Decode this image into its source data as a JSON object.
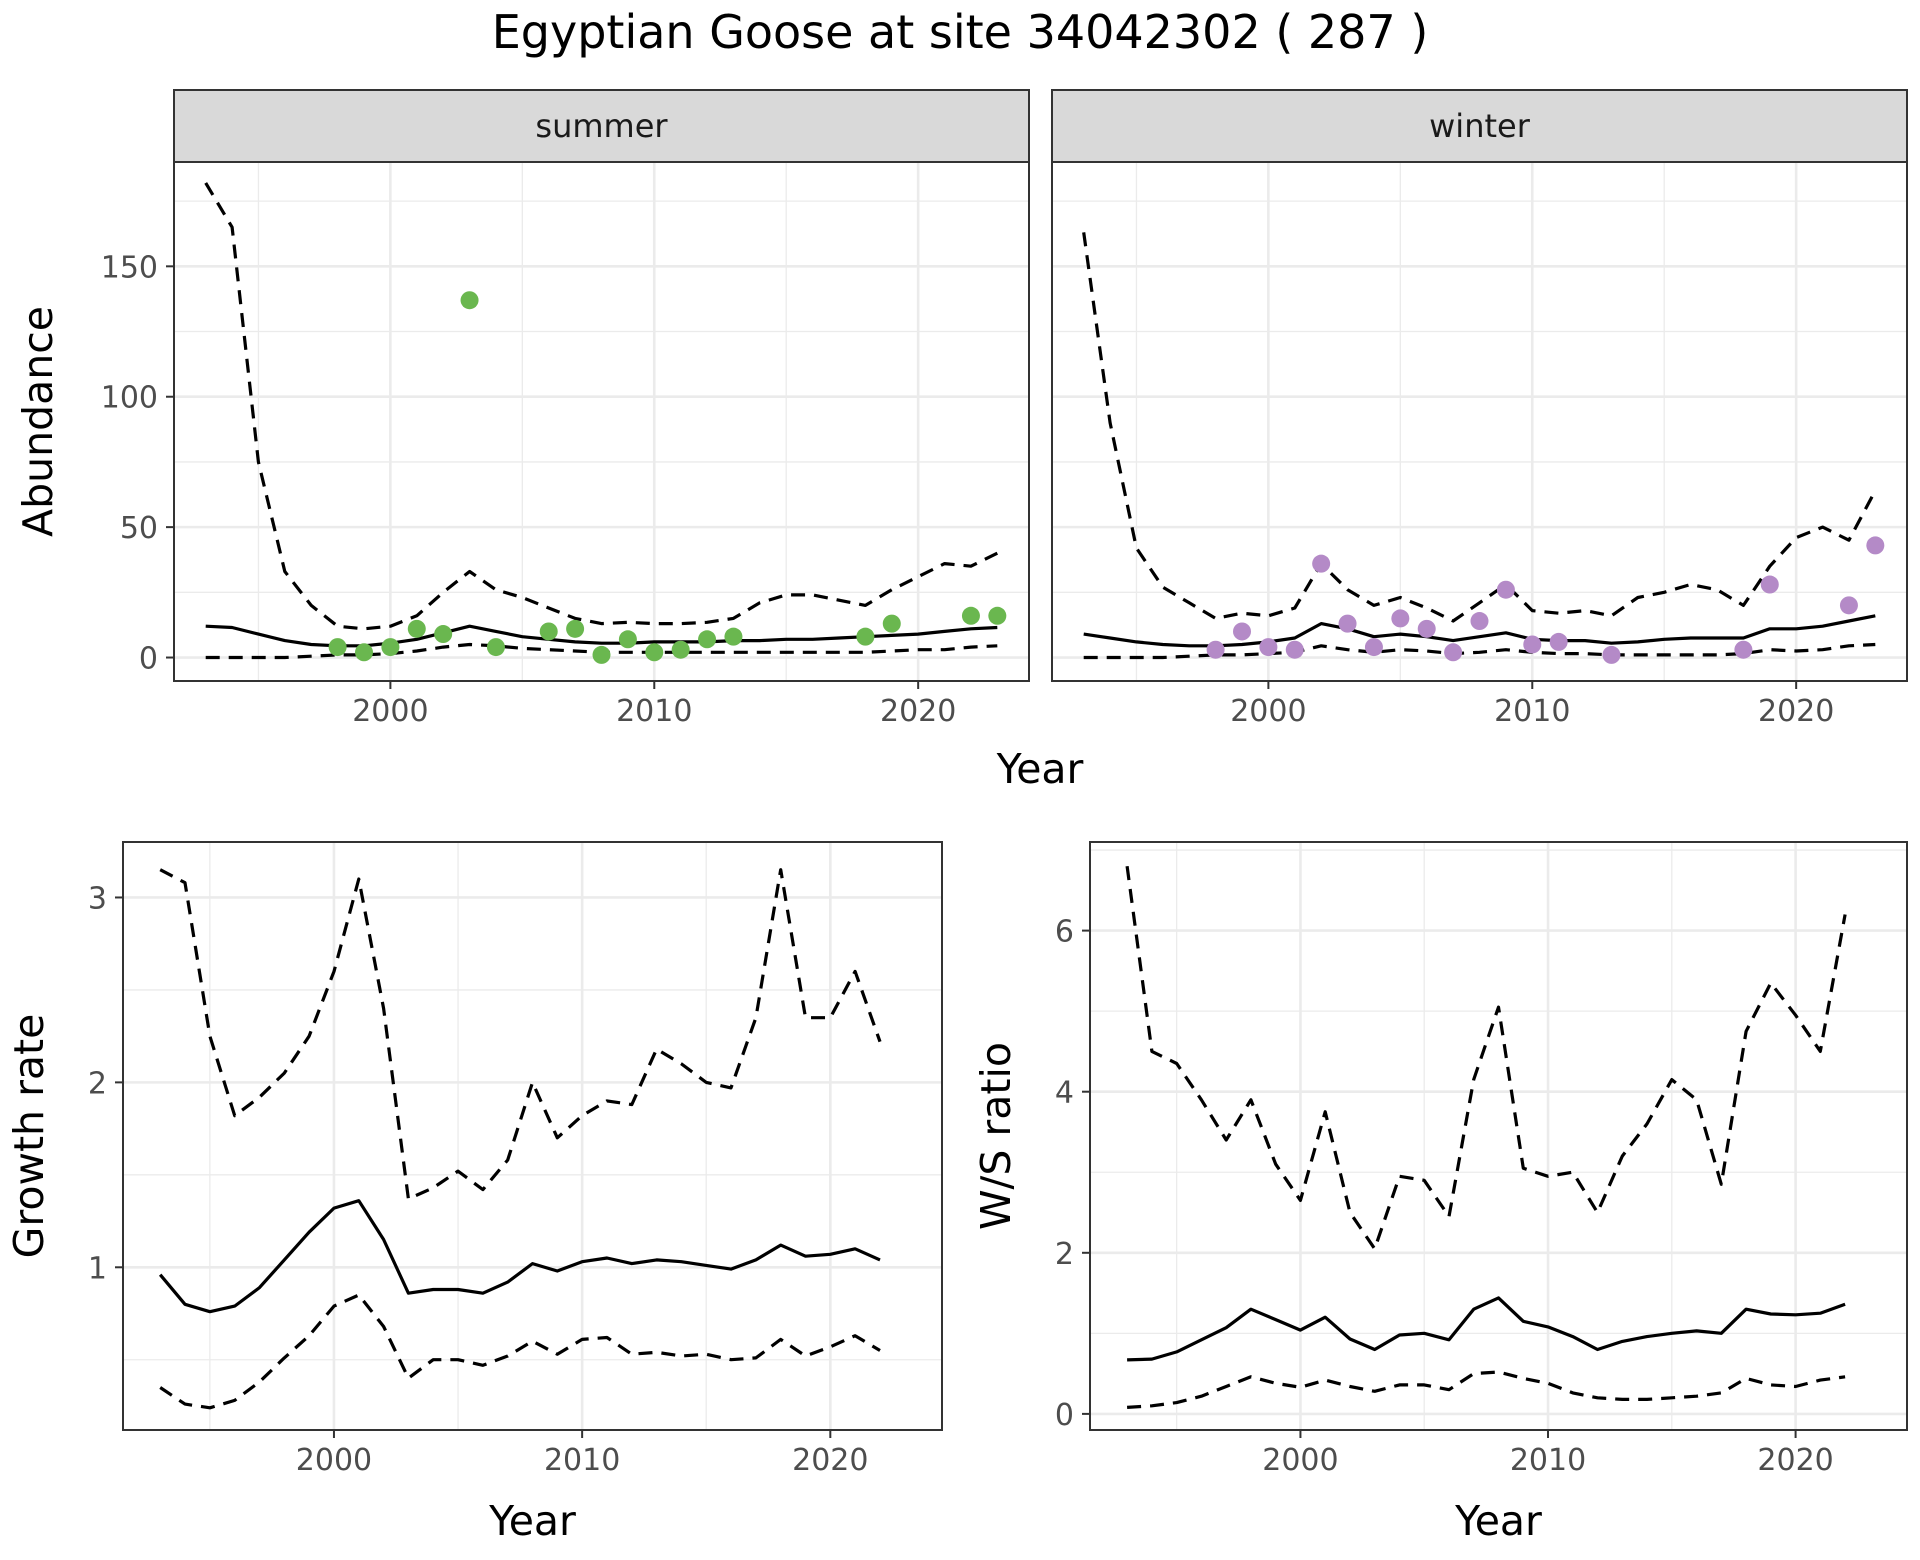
{
  "figure": {
    "title": "Egyptian Goose at site 34042302 ( 287 )"
  },
  "colors": {
    "summer_points": "#6ab74f",
    "winter_points": "#b48ac7",
    "line": "#000000",
    "grid": "#ebebeb"
  },
  "chart_data": [
    {
      "id": "abundance-summer",
      "type": "line",
      "facet": "summer",
      "xlabel": "Year",
      "ylabel": "Abundance",
      "xlim": [
        1991.8,
        2024.2
      ],
      "ylim": [
        -9,
        190
      ],
      "x_ticks": [
        2000,
        2010,
        2020
      ],
      "y_ticks": [
        0,
        50,
        100,
        150
      ],
      "grid": true,
      "series": [
        {
          "style": "solid",
          "x": [
            1993,
            1994,
            1995,
            1996,
            1997,
            1998,
            1999,
            2000,
            2001,
            2002,
            2003,
            2004,
            2005,
            2006,
            2007,
            2008,
            2009,
            2010,
            2011,
            2012,
            2013,
            2014,
            2015,
            2016,
            2017,
            2018,
            2019,
            2020,
            2021,
            2022,
            2023
          ],
          "y": [
            12,
            11.5,
            9,
            6.5,
            5,
            4.5,
            4.5,
            5.5,
            7,
            9.5,
            12,
            10,
            8,
            7,
            6,
            5.5,
            5.5,
            6,
            6,
            6,
            6.5,
            6.5,
            7,
            7,
            7.5,
            8,
            8.5,
            9,
            10,
            11,
            11.5
          ]
        },
        {
          "style": "dashed",
          "x": [
            1993,
            1994,
            1995,
            1996,
            1997,
            1998,
            1999,
            2000,
            2001,
            2002,
            2003,
            2004,
            2005,
            2006,
            2007,
            2008,
            2009,
            2010,
            2011,
            2012,
            2013,
            2014,
            2015,
            2016,
            2017,
            2018,
            2019,
            2020,
            2021,
            2022,
            2023
          ],
          "y": [
            182,
            165,
            75,
            33,
            20,
            12,
            11,
            12,
            16,
            25,
            33,
            26,
            23,
            19,
            15,
            13,
            13.5,
            13,
            13,
            13.5,
            15,
            21,
            24,
            24,
            22,
            20,
            26,
            31,
            36,
            35,
            40
          ]
        },
        {
          "style": "dashed",
          "x": [
            1993,
            1994,
            1995,
            1996,
            1997,
            1998,
            1999,
            2000,
            2001,
            2002,
            2003,
            2004,
            2005,
            2006,
            2007,
            2008,
            2009,
            2010,
            2011,
            2012,
            2013,
            2014,
            2015,
            2016,
            2017,
            2018,
            2019,
            2020,
            2021,
            2022,
            2023
          ],
          "y": [
            0,
            0,
            0,
            0,
            0.5,
            1,
            1,
            1.5,
            2.5,
            4,
            5,
            4.5,
            3.5,
            3,
            2.5,
            2,
            2,
            2,
            2,
            2,
            2,
            2,
            2,
            2,
            2,
            2,
            2.5,
            3,
            3,
            4,
            4.5
          ]
        },
        {
          "style": "points",
          "x": [
            1998,
            1999,
            2000,
            2001,
            2002,
            2003,
            2004,
            2006,
            2007,
            2008,
            2009,
            2010,
            2011,
            2012,
            2013,
            2018,
            2019,
            2022,
            2023
          ],
          "y": [
            4,
            2,
            4,
            11,
            9,
            137,
            4,
            10,
            11,
            1,
            7,
            2,
            3,
            7,
            8,
            8,
            13,
            16,
            16
          ]
        }
      ]
    },
    {
      "id": "abundance-winter",
      "type": "line",
      "facet": "winter",
      "xlabel": "Year",
      "ylabel": "Abundance",
      "xlim": [
        1991.8,
        2024.2
      ],
      "ylim": [
        -9,
        190
      ],
      "x_ticks": [
        2000,
        2010,
        2020
      ],
      "y_ticks": [
        0,
        50,
        100,
        150
      ],
      "grid": true,
      "series": [
        {
          "style": "solid",
          "x": [
            1993,
            1994,
            1995,
            1996,
            1997,
            1998,
            1999,
            2000,
            2001,
            2002,
            2003,
            2004,
            2005,
            2006,
            2007,
            2008,
            2009,
            2010,
            2011,
            2012,
            2013,
            2014,
            2015,
            2016,
            2017,
            2018,
            2019,
            2020,
            2021,
            2022,
            2023
          ],
          "y": [
            9,
            7.5,
            6,
            5,
            4.5,
            4.5,
            5,
            6,
            7.5,
            13,
            11,
            8,
            9,
            8,
            6.5,
            8,
            9.5,
            7,
            6.5,
            6.5,
            5.5,
            6,
            7,
            7.5,
            7.5,
            7.5,
            11,
            11,
            12,
            14,
            16
          ]
        },
        {
          "style": "dashed",
          "x": [
            1993,
            1994,
            1995,
            1996,
            1997,
            1998,
            1999,
            2000,
            2001,
            2002,
            2003,
            2004,
            2005,
            2006,
            2007,
            2008,
            2009,
            2010,
            2011,
            2012,
            2013,
            2014,
            2015,
            2016,
            2017,
            2018,
            2019,
            2020,
            2021,
            2022,
            2023
          ],
          "y": [
            163,
            90,
            42,
            27,
            21,
            15,
            17,
            16,
            19,
            36,
            26,
            20,
            23,
            19,
            14,
            21,
            28,
            18,
            17,
            18,
            16,
            23,
            25,
            28,
            26,
            20,
            35,
            46,
            50,
            45,
            64
          ]
        },
        {
          "style": "dashed",
          "x": [
            1993,
            1994,
            1995,
            1996,
            1997,
            1998,
            1999,
            2000,
            2001,
            2002,
            2003,
            2004,
            2005,
            2006,
            2007,
            2008,
            2009,
            2010,
            2011,
            2012,
            2013,
            2014,
            2015,
            2016,
            2017,
            2018,
            2019,
            2020,
            2021,
            2022,
            2023
          ],
          "y": [
            0,
            0,
            0,
            0,
            0.5,
            1,
            1,
            1.5,
            2,
            4.5,
            3,
            2,
            3,
            2.5,
            1.5,
            2,
            3,
            2,
            1.5,
            1.5,
            1,
            1,
            1,
            1,
            1,
            1.5,
            3,
            2.5,
            3,
            4.5,
            5
          ]
        },
        {
          "style": "points",
          "x": [
            1998,
            1999,
            2000,
            2001,
            2002,
            2003,
            2004,
            2005,
            2006,
            2007,
            2008,
            2009,
            2010,
            2011,
            2013,
            2018,
            2019,
            2022,
            2023
          ],
          "y": [
            3,
            10,
            4,
            3,
            36,
            13,
            4,
            15,
            11,
            2,
            14,
            26,
            5,
            6,
            1,
            3,
            28,
            20,
            43
          ]
        }
      ]
    },
    {
      "id": "growth-rate",
      "type": "line",
      "xlabel": "Year",
      "ylabel": "Growth rate",
      "xlim": [
        1991.5,
        2024.5
      ],
      "ylim": [
        0.12,
        3.3
      ],
      "x_ticks": [
        2000,
        2010,
        2020
      ],
      "y_ticks": [
        1,
        2,
        3
      ],
      "grid": true,
      "series": [
        {
          "style": "solid",
          "x": [
            1993,
            1994,
            1995,
            1996,
            1997,
            1998,
            1999,
            2000,
            2001,
            2002,
            2003,
            2004,
            2005,
            2006,
            2007,
            2008,
            2009,
            2010,
            2011,
            2012,
            2013,
            2014,
            2015,
            2016,
            2017,
            2018,
            2019,
            2020,
            2021,
            2022
          ],
          "y": [
            0.96,
            0.8,
            0.76,
            0.79,
            0.89,
            1.04,
            1.19,
            1.32,
            1.36,
            1.15,
            0.86,
            0.88,
            0.88,
            0.86,
            0.92,
            1.02,
            0.98,
            1.03,
            1.05,
            1.02,
            1.04,
            1.03,
            1.01,
            0.99,
            1.04,
            1.12,
            1.06,
            1.07,
            1.1,
            1.04
          ]
        },
        {
          "style": "dashed",
          "x": [
            1993,
            1994,
            1995,
            1996,
            1997,
            1998,
            1999,
            2000,
            2001,
            2002,
            2003,
            2004,
            2005,
            2006,
            2007,
            2008,
            2009,
            2010,
            2011,
            2012,
            2013,
            2014,
            2015,
            2016,
            2017,
            2018,
            2019,
            2020,
            2021,
            2022
          ],
          "y": [
            3.15,
            3.08,
            2.25,
            1.82,
            1.92,
            2.05,
            2.25,
            2.6,
            3.1,
            2.4,
            1.37,
            1.43,
            1.52,
            1.42,
            1.58,
            2.0,
            1.7,
            1.82,
            1.9,
            1.88,
            2.18,
            2.1,
            2.0,
            1.97,
            2.35,
            3.15,
            2.35,
            2.35,
            2.6,
            2.22
          ]
        },
        {
          "style": "dashed",
          "x": [
            1993,
            1994,
            1995,
            1996,
            1997,
            1998,
            1999,
            2000,
            2001,
            2002,
            2003,
            2004,
            2005,
            2006,
            2007,
            2008,
            2009,
            2010,
            2011,
            2012,
            2013,
            2014,
            2015,
            2016,
            2017,
            2018,
            2019,
            2020,
            2021,
            2022
          ],
          "y": [
            0.35,
            0.26,
            0.24,
            0.28,
            0.38,
            0.51,
            0.63,
            0.79,
            0.85,
            0.68,
            0.4,
            0.5,
            0.5,
            0.47,
            0.52,
            0.6,
            0.53,
            0.61,
            0.62,
            0.53,
            0.54,
            0.52,
            0.53,
            0.5,
            0.51,
            0.61,
            0.52,
            0.57,
            0.63,
            0.55
          ]
        }
      ]
    },
    {
      "id": "ws-ratio",
      "type": "line",
      "xlabel": "Year",
      "ylabel": "W/S ratio",
      "xlim": [
        1991.5,
        2024.5
      ],
      "ylim": [
        -0.2,
        7.1
      ],
      "x_ticks": [
        2000,
        2010,
        2020
      ],
      "y_ticks": [
        0,
        2,
        4,
        6
      ],
      "grid": true,
      "series": [
        {
          "style": "solid",
          "x": [
            1993,
            1994,
            1995,
            1996,
            1997,
            1998,
            1999,
            2000,
            2001,
            2002,
            2003,
            2004,
            2005,
            2006,
            2007,
            2008,
            2009,
            2010,
            2011,
            2012,
            2013,
            2014,
            2015,
            2016,
            2017,
            2018,
            2019,
            2020,
            2021,
            2022
          ],
          "y": [
            0.67,
            0.68,
            0.77,
            0.92,
            1.07,
            1.3,
            1.17,
            1.04,
            1.2,
            0.93,
            0.8,
            0.98,
            1.0,
            0.92,
            1.3,
            1.44,
            1.15,
            1.08,
            0.96,
            0.8,
            0.9,
            0.96,
            1.0,
            1.03,
            1.0,
            1.3,
            1.24,
            1.23,
            1.25,
            1.36
          ]
        },
        {
          "style": "dashed",
          "x": [
            1993,
            1994,
            1995,
            1996,
            1997,
            1998,
            1999,
            2000,
            2001,
            2002,
            2003,
            2004,
            2005,
            2006,
            2007,
            2008,
            2009,
            2010,
            2011,
            2012,
            2013,
            2014,
            2015,
            2016,
            2017,
            2018,
            2019,
            2020,
            2021,
            2022
          ],
          "y": [
            6.8,
            4.5,
            4.35,
            3.9,
            3.4,
            3.9,
            3.1,
            2.65,
            3.75,
            2.5,
            2.05,
            2.95,
            2.9,
            2.45,
            4.15,
            5.05,
            3.05,
            2.95,
            3.0,
            2.5,
            3.2,
            3.6,
            4.15,
            3.9,
            2.85,
            4.75,
            5.35,
            4.95,
            4.5,
            6.2
          ]
        },
        {
          "style": "dashed",
          "x": [
            1993,
            1994,
            1995,
            1996,
            1997,
            1998,
            1999,
            2000,
            2001,
            2002,
            2003,
            2004,
            2005,
            2006,
            2007,
            2008,
            2009,
            2010,
            2011,
            2012,
            2013,
            2014,
            2015,
            2016,
            2017,
            2018,
            2019,
            2020,
            2021,
            2022
          ],
          "y": [
            0.08,
            0.1,
            0.14,
            0.22,
            0.34,
            0.46,
            0.38,
            0.33,
            0.42,
            0.34,
            0.28,
            0.36,
            0.36,
            0.3,
            0.5,
            0.52,
            0.44,
            0.38,
            0.26,
            0.2,
            0.18,
            0.18,
            0.2,
            0.22,
            0.26,
            0.44,
            0.36,
            0.34,
            0.42,
            0.46
          ]
        }
      ]
    }
  ]
}
